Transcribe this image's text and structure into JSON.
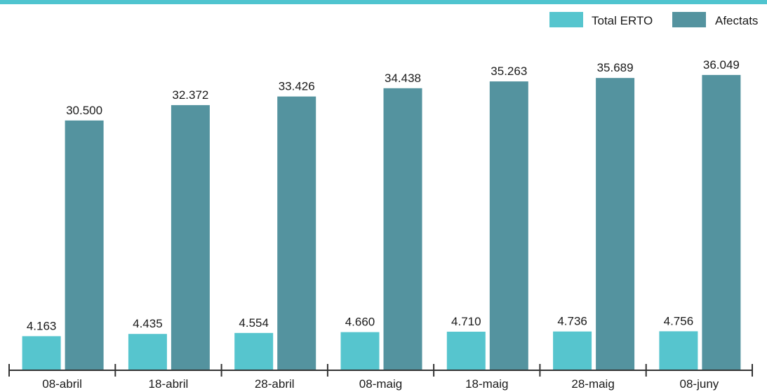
{
  "colors": {
    "top_bar": "#4fc4cf",
    "total_erto": "#56c5ce",
    "afectats": "#54939f",
    "axis": "#333333",
    "text": "#1a1a1a"
  },
  "chart_data": {
    "type": "bar",
    "title": "",
    "xlabel": "",
    "ylabel": "",
    "ylim": [
      0,
      37000
    ],
    "grid": false,
    "legend_position": "top-right",
    "categories": [
      "08-abril",
      "18-abril",
      "28-abril",
      "08-maig",
      "18-maig",
      "28-maig",
      "08-juny"
    ],
    "series": [
      {
        "name": "Total ERTO",
        "color": "#56c5ce",
        "values": [
          4163,
          4435,
          4554,
          4660,
          4710,
          4736,
          4756
        ],
        "labels": [
          "4.163",
          "4.435",
          "4.554",
          "4.660",
          "4.710",
          "4.736",
          "4.756"
        ]
      },
      {
        "name": "Afectats",
        "color": "#54939f",
        "values": [
          30500,
          32372,
          33426,
          34438,
          35263,
          35689,
          36049
        ],
        "labels": [
          "30.500",
          "32.372",
          "33.426",
          "34.438",
          "35.263",
          "35.689",
          "36.049"
        ]
      }
    ]
  }
}
